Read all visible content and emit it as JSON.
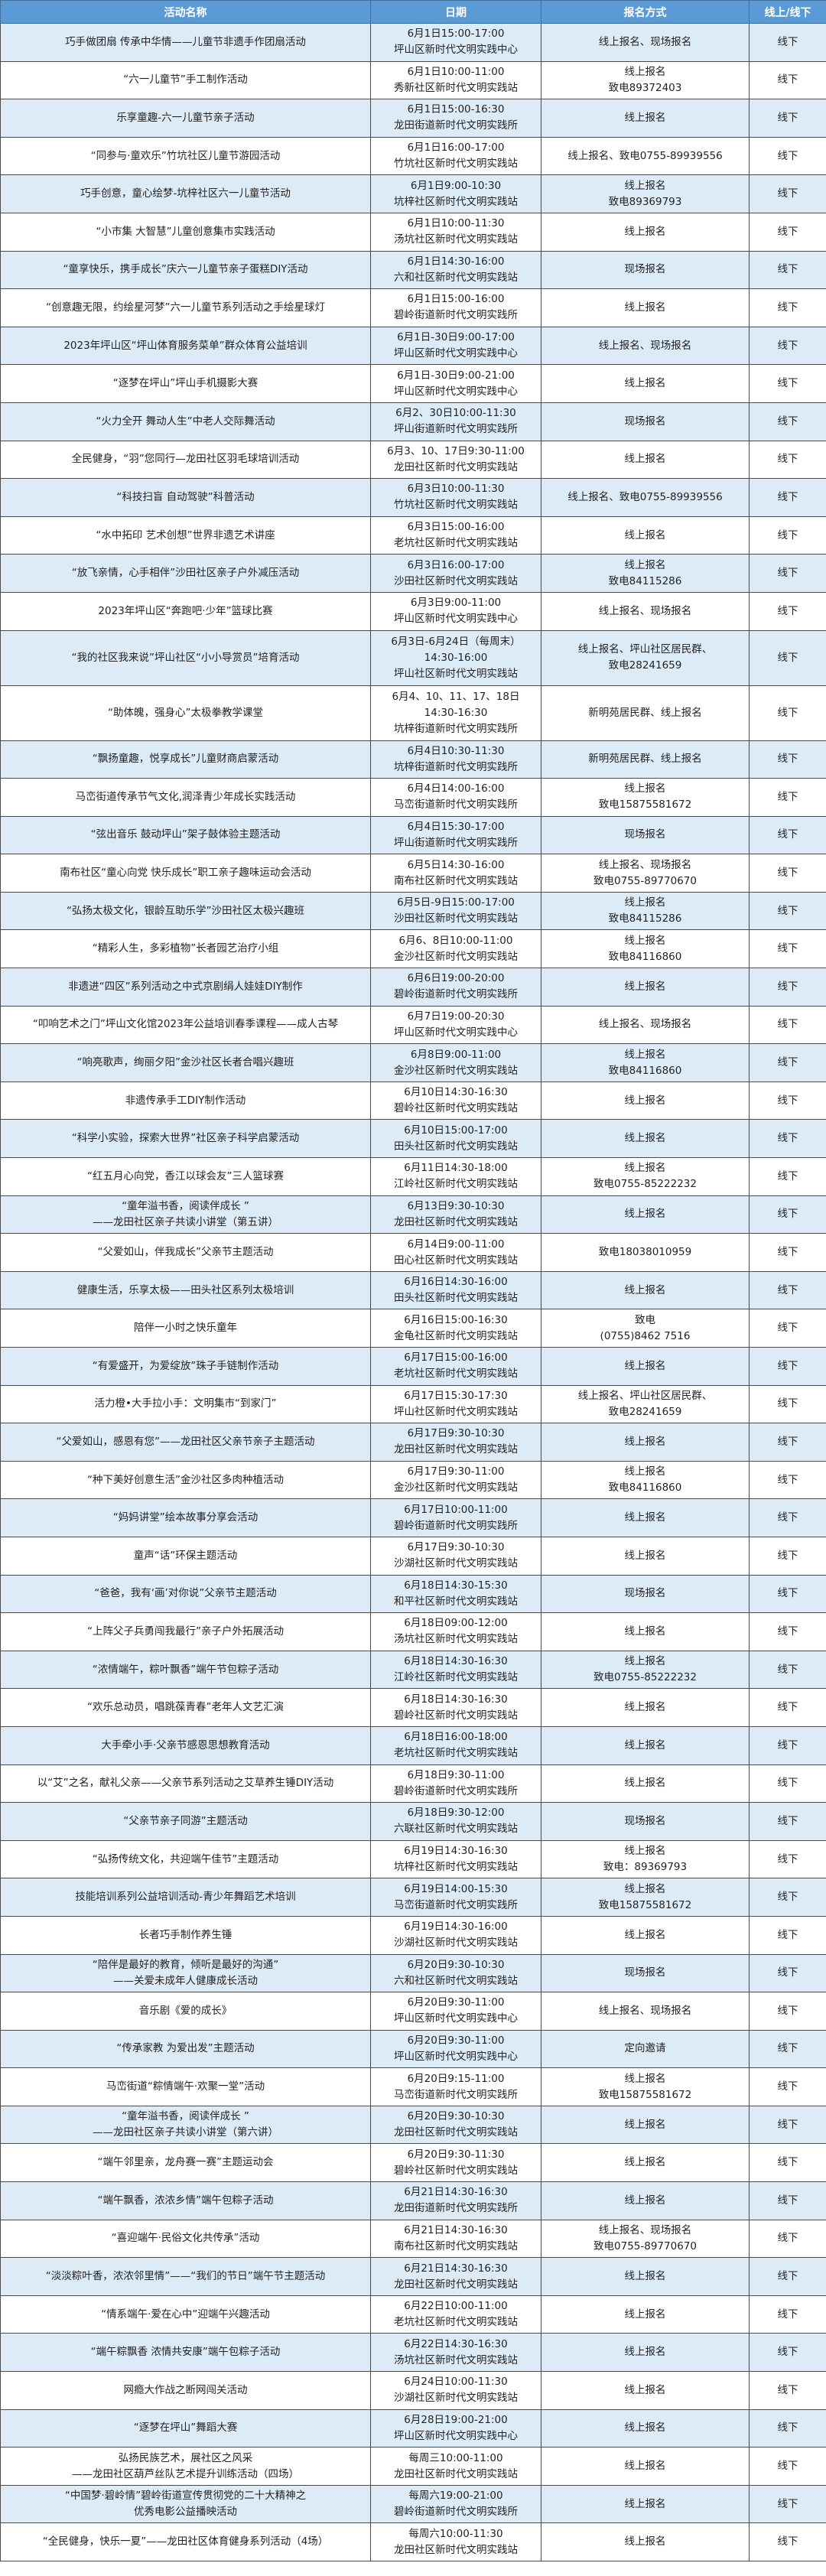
{
  "header": {
    "name": "活动名称",
    "date": "日期",
    "signup": "报名方式",
    "mode": "线上/线下"
  },
  "colors": {
    "header_bg": "#5b9bd5",
    "alt_row_bg": "#ddebf7"
  },
  "rows": [
    {
      "name": [
        "巧手做团扇 传承中华情——儿童节非遗手作团扇活动"
      ],
      "date": [
        "6月1日15:00-17:00",
        "坪山区新时代文明实践中心"
      ],
      "signup": [
        "线上报名、现场报名"
      ],
      "mode": "线下"
    },
    {
      "name": [
        "“六一儿童节”手工制作活动"
      ],
      "date": [
        "6月1日10:00-11:00",
        "秀新社区新时代文明实践站"
      ],
      "signup": [
        "线上报名",
        "致电89372403"
      ],
      "mode": "线下"
    },
    {
      "name": [
        "乐享童趣-六一儿童节亲子活动"
      ],
      "date": [
        "6月1日15:00-16:30",
        "龙田街道新时代文明实践所"
      ],
      "signup": [
        "线上报名"
      ],
      "mode": "线下"
    },
    {
      "name": [
        "“同参与·童欢乐”竹坑社区儿童节游园活动"
      ],
      "date": [
        "6月1日16:00-17:00",
        "竹坑社区新时代文明实践站"
      ],
      "signup": [
        "线上报名、致电0755-89939556"
      ],
      "mode": "线下"
    },
    {
      "name": [
        "巧手创意，童心绘梦-坑梓社区六一儿童节活动"
      ],
      "date": [
        "6月1日9:00-10:30",
        "坑梓社区新时代文明实践站"
      ],
      "signup": [
        "线上报名",
        "致电89369793"
      ],
      "mode": "线下"
    },
    {
      "name": [
        "“小市集 大智慧”儿童创意集市实践活动"
      ],
      "date": [
        "6月1日10:00-11:30",
        "汤坑社区新时代文明实践站"
      ],
      "signup": [
        "线上报名"
      ],
      "mode": "线下"
    },
    {
      "name": [
        "“童享快乐，携手成长”庆六一儿童节亲子蛋糕DIY活动"
      ],
      "date": [
        "6月1日14:30-16:00",
        "六和社区新时代文明实践站"
      ],
      "signup": [
        "现场报名"
      ],
      "mode": "线下"
    },
    {
      "name": [
        "“创意趣无限，约绘星河梦”六一儿童节系列活动之手绘星球灯"
      ],
      "date": [
        "6月1日15:00-16:00",
        "碧岭街道新时代文明实践所"
      ],
      "signup": [
        "线上报名"
      ],
      "mode": "线下"
    },
    {
      "name": [
        "2023年坪山区“坪山体育服务菜单”群众体育公益培训"
      ],
      "date": [
        "6月1日-30日9:00-17:00",
        "坪山区新时代文明实践中心"
      ],
      "signup": [
        "线上报名、现场报名"
      ],
      "mode": "线下"
    },
    {
      "name": [
        "“逐梦在坪山”坪山手机摄影大赛"
      ],
      "date": [
        "6月1日-30日9:00-21:00",
        "坪山区新时代文明实践中心"
      ],
      "signup": [
        "线上报名"
      ],
      "mode": "线下"
    },
    {
      "name": [
        "“火力全开 舞动人生”中老人交际舞活动"
      ],
      "date": [
        "6月2、30日10:00-11:30",
        "坪山街道新时代文明实践所"
      ],
      "signup": [
        "现场报名"
      ],
      "mode": "线下"
    },
    {
      "name": [
        "全民健身，“羽”您同行—龙田社区羽毛球培训活动"
      ],
      "date": [
        "6月3、10、17日9:30-11:00",
        "龙田社区新时代文明实践站"
      ],
      "signup": [
        "线上报名"
      ],
      "mode": "线下"
    },
    {
      "name": [
        "“科技扫盲 自动驾驶”科普活动"
      ],
      "date": [
        "6月3日10:00-11:30",
        "竹坑社区新时代文明实践站"
      ],
      "signup": [
        "线上报名、致电0755-89939556"
      ],
      "mode": "线下"
    },
    {
      "name": [
        "“水中拓印 艺术创想”世界非遗艺术讲座"
      ],
      "date": [
        "6月3日15:00-16:00",
        "老坑社区新时代文明实践站"
      ],
      "signup": [
        "线上报名"
      ],
      "mode": "线下"
    },
    {
      "name": [
        "“放飞亲情，心手相伴”沙田社区亲子户外减压活动"
      ],
      "date": [
        "6月3日16:00-17:00",
        "沙田社区新时代文明实践站"
      ],
      "signup": [
        "线上报名",
        "致电84115286"
      ],
      "mode": "线下"
    },
    {
      "name": [
        "2023年坪山区“奔跑吧·少年”篮球比赛"
      ],
      "date": [
        "6月3日9:00-11:00",
        "坪山区新时代文明实践中心"
      ],
      "signup": [
        "线上报名、现场报名"
      ],
      "mode": "线下"
    },
    {
      "name": [
        "“我的社区我来说”坪山社区“小小导赏员”培育活动"
      ],
      "date": [
        "6月3日-6月24日（每周末）",
        "14:30-16:00",
        "坪山社区新时代文明实践站"
      ],
      "signup": [
        "线上报名、坪山社区居民群、",
        "致电28241659"
      ],
      "mode": "线下"
    },
    {
      "name": [
        "“助体魄，强身心”太极拳教学课堂"
      ],
      "date": [
        "6月4、10、11、17、18日",
        "14:30-16:30",
        "坑梓街道新时代文明实践所"
      ],
      "signup": [
        "新明苑居民群、线上报名"
      ],
      "mode": "线下"
    },
    {
      "name": [
        "“飘扬童趣，悦享成长”儿童财商启蒙活动"
      ],
      "date": [
        "6月4日10:30-11:30",
        "坑梓街道新时代文明实践所"
      ],
      "signup": [
        "新明苑居民群、线上报名"
      ],
      "mode": "线下"
    },
    {
      "name": [
        "马峦街道传承节气文化,润泽青少年成长实践活动"
      ],
      "date": [
        "6月4日14:00-16:00",
        "马峦街道新时代文明实践所"
      ],
      "signup": [
        "线上报名",
        "致电15875581672"
      ],
      "mode": "线下"
    },
    {
      "name": [
        "“弦出音乐 鼓动坪山”架子鼓体验主题活动"
      ],
      "date": [
        "6月4日15:30-17:00",
        "坪山街道新时代文明实践所"
      ],
      "signup": [
        "现场报名"
      ],
      "mode": "线下"
    },
    {
      "name": [
        "南布社区“童心向党 快乐成长”职工亲子趣味运动会活动"
      ],
      "date": [
        "6月5日14:30-16:00",
        "南布社区新时代文明实践站"
      ],
      "signup": [
        "线上报名、现场报名",
        "致电0755-89770670"
      ],
      "mode": "线下"
    },
    {
      "name": [
        "“弘扬太极文化，银龄互助乐学”沙田社区太极兴趣班"
      ],
      "date": [
        "6月5日-9日15:00-17:00",
        "沙田社区新时代文明实践站"
      ],
      "signup": [
        "线上报名",
        "致电84115286"
      ],
      "mode": "线下"
    },
    {
      "name": [
        "“精彩人生，多彩植物”长者园艺治疗小组"
      ],
      "date": [
        "6月6、8日10:00-11:00",
        "金沙社区新时代文明实践站"
      ],
      "signup": [
        "线上报名",
        "致电84116860"
      ],
      "mode": "线下"
    },
    {
      "name": [
        "非遗进“四区”系列活动之中式京剧绢人娃娃DIY制作"
      ],
      "date": [
        "6月6日19:00-20:00",
        "碧岭街道新时代文明实践所"
      ],
      "signup": [
        "线上报名"
      ],
      "mode": "线下"
    },
    {
      "name": [
        "“叩响艺术之门”坪山文化馆2023年公益培训春季课程——成人古琴"
      ],
      "date": [
        "6月7日19:00-20:30",
        "坪山区新时代文明实践中心"
      ],
      "signup": [
        "线上报名、现场报名"
      ],
      "mode": "线下"
    },
    {
      "name": [
        "“响亮歌声，绚丽夕阳”金沙社区长者合唱兴趣班"
      ],
      "date": [
        "6月8日9:00-11:00",
        "金沙社区新时代文明实践站"
      ],
      "signup": [
        "线上报名",
        "致电84116860"
      ],
      "mode": "线下"
    },
    {
      "name": [
        "非遗传承手工DIY制作活动"
      ],
      "date": [
        "6月10日14:30-16:30",
        "碧岭社区新时代文明实践站"
      ],
      "signup": [
        "线上报名"
      ],
      "mode": "线下"
    },
    {
      "name": [
        "“科学小实验，探索大世界”社区亲子科学启蒙活动"
      ],
      "date": [
        "6月10日15:00-17:00",
        "田头社区新时代文明实践站"
      ],
      "signup": [
        "线上报名"
      ],
      "mode": "线下"
    },
    {
      "name": [
        "“红五月心向党，香江以球会友”三人篮球赛"
      ],
      "date": [
        "6月11日14:30-18:00",
        "江岭社区新时代文明实践站"
      ],
      "signup": [
        "线上报名",
        "致电0755-85222232"
      ],
      "mode": "线下"
    },
    {
      "name": [
        "“童年溢书香，阅读伴成长 ”",
        "——龙田社区亲子共读小讲堂（第五讲）"
      ],
      "date": [
        "6月13日9:30-10:30",
        "龙田社区新时代文明实践站"
      ],
      "signup": [
        "线上报名"
      ],
      "mode": "线下"
    },
    {
      "name": [
        "“父爱如山，伴我成长”父亲节主题活动"
      ],
      "date": [
        "6月14日9:00-11:00",
        "田心社区新时代文明实践站"
      ],
      "signup": [
        "致电18038010959"
      ],
      "mode": "线下"
    },
    {
      "name": [
        "健康生活，乐享太极——田头社区系列太极培训"
      ],
      "date": [
        "6月16日14:30-16:00",
        "田头社区新时代文明实践站"
      ],
      "signup": [
        "线上报名"
      ],
      "mode": "线下"
    },
    {
      "name": [
        "陪伴一小时之快乐童年"
      ],
      "date": [
        "6月16日15:00-16:30",
        "金龟社区新时代文明实践站"
      ],
      "signup": [
        "致电",
        "(0755)8462 7516"
      ],
      "mode": "线下"
    },
    {
      "name": [
        "“有爱盛开，为爱绽放”珠子手链制作活动"
      ],
      "date": [
        "6月17日15:00-16:00",
        "老坑社区新时代文明实践站"
      ],
      "signup": [
        "线上报名"
      ],
      "mode": "线下"
    },
    {
      "name": [
        "活力橙•大手拉小手：文明集市“到家门”"
      ],
      "date": [
        "6月17日15:30-17:30",
        "坪山社区新时代文明实践站"
      ],
      "signup": [
        "线上报名、坪山社区居民群、",
        "致电28241659"
      ],
      "mode": "线下"
    },
    {
      "name": [
        "“父爱如山，感恩有您”——龙田社区父亲节亲子主题活动"
      ],
      "date": [
        "6月17日9:30-10:30",
        "龙田社区新时代文明实践站"
      ],
      "signup": [
        "线上报名"
      ],
      "mode": "线下"
    },
    {
      "name": [
        "“种下美好创意生活”金沙社区多肉种植活动"
      ],
      "date": [
        "6月17日9:30-11:00",
        "金沙社区新时代文明实践站"
      ],
      "signup": [
        "线上报名",
        "致电84116860"
      ],
      "mode": "线下"
    },
    {
      "name": [
        "“妈妈讲堂”绘本故事分享会活动"
      ],
      "date": [
        "6月17日10:00-11:00",
        "碧岭街道新时代文明实践所"
      ],
      "signup": [
        "线上报名"
      ],
      "mode": "线下"
    },
    {
      "name": [
        "童声“话”环保主题活动"
      ],
      "date": [
        "6月17日9:30-10:30",
        "沙湖社区新时代文明实践站"
      ],
      "signup": [
        "线上报名"
      ],
      "mode": "线下"
    },
    {
      "name": [
        "“爸爸，我有‘画’对你说”父亲节主题活动"
      ],
      "date": [
        "6月18日14:30-15:30",
        "和平社区新时代文明实践站"
      ],
      "signup": [
        "现场报名"
      ],
      "mode": "线下"
    },
    {
      "name": [
        "“上阵父子兵勇闯我最行”亲子户外拓展活动"
      ],
      "date": [
        "6月18日09:00-12:00",
        "汤坑社区新时代文明实践站"
      ],
      "signup": [
        "线上报名"
      ],
      "mode": "线下"
    },
    {
      "name": [
        "“浓情端午，粽叶飘香”端午节包粽子活动"
      ],
      "date": [
        "6月18日14:30-16:30",
        "江岭社区新时代文明实践站"
      ],
      "signup": [
        "线上报名",
        "致电0755-85222232"
      ],
      "mode": "线下"
    },
    {
      "name": [
        "“欢乐总动员，唱跳葆青春”老年人文艺汇演"
      ],
      "date": [
        "6月18日14:30-16:30",
        "碧岭社区新时代文明实践站"
      ],
      "signup": [
        "线上报名"
      ],
      "mode": "线下"
    },
    {
      "name": [
        "大手牵小手·父亲节感恩思想教育活动"
      ],
      "date": [
        "6月18日16:00-18:00",
        "老坑社区新时代文明实践站"
      ],
      "signup": [
        "线上报名"
      ],
      "mode": "线下"
    },
    {
      "name": [
        "以“艾”之名，献礼父亲——父亲节系列活动之艾草养生锤DIY活动"
      ],
      "date": [
        "6月18日9:30-11:00",
        "碧岭街道新时代文明实践所"
      ],
      "signup": [
        "线上报名"
      ],
      "mode": "线下"
    },
    {
      "name": [
        "“父亲节亲子同游”主题活动"
      ],
      "date": [
        "6月18日9:30-12:00",
        "六联社区新时代文明实践站"
      ],
      "signup": [
        "现场报名"
      ],
      "mode": "线下"
    },
    {
      "name": [
        "“弘扬传统文化，共迎端午佳节”主题活动"
      ],
      "date": [
        "6月19日14:30-16:30",
        "坑梓社区新时代文明实践站"
      ],
      "signup": [
        "线上报名",
        "致电：89369793"
      ],
      "mode": "线下"
    },
    {
      "name": [
        "技能培训系列公益培训活动-青少年舞蹈艺术培训"
      ],
      "date": [
        "6月19日14:00-15:30",
        "马峦街道新时代文明实践所"
      ],
      "signup": [
        "线上报名",
        "致电15875581672"
      ],
      "mode": "线下"
    },
    {
      "name": [
        "长者巧手制作养生锤"
      ],
      "date": [
        "6月19日14:30-16:00",
        "沙湖社区新时代文明实践站"
      ],
      "signup": [
        "线上报名"
      ],
      "mode": "线下"
    },
    {
      "name": [
        "“陪伴是最好的教育，倾听是最好的沟通”",
        "——关爱未成年人健康成长活动"
      ],
      "date": [
        "6月20日9:30-10:30",
        "六和社区新时代文明实践站"
      ],
      "signup": [
        "现场报名"
      ],
      "mode": "线下"
    },
    {
      "name": [
        "音乐剧《爱的成长》"
      ],
      "date": [
        "6月20日9:30-11:00",
        "坪山区新时代文明实践中心"
      ],
      "signup": [
        "线上报名、现场报名"
      ],
      "mode": "线下"
    },
    {
      "name": [
        "“传承家教 为爱出发”主题活动"
      ],
      "date": [
        "6月20日9:30-11:00",
        "坪山区新时代文明实践中心"
      ],
      "signup": [
        "定向邀请"
      ],
      "mode": "线下"
    },
    {
      "name": [
        "马峦街道“粽情端午·欢聚一堂”活动"
      ],
      "date": [
        "6月20日9:15-11:00",
        "马峦街道新时代文明实践所"
      ],
      "signup": [
        "线上报名",
        "致电15875581672"
      ],
      "mode": "线下"
    },
    {
      "name": [
        "“童年溢书香，阅读伴成长 ”",
        "——龙田社区亲子共读小讲堂（第六讲）"
      ],
      "date": [
        "6月20日9:30-10:30",
        "龙田社区新时代文明实践站"
      ],
      "signup": [
        "线上报名"
      ],
      "mode": "线下"
    },
    {
      "name": [
        "“端午邻里亲，龙舟赛一赛”主题运动会"
      ],
      "date": [
        "6月20日9:30-11:30",
        "碧岭社区新时代文明实践站"
      ],
      "signup": [
        "线上报名"
      ],
      "mode": "线下"
    },
    {
      "name": [
        "“端午飘香，浓浓乡情”端午包粽子活动"
      ],
      "date": [
        "6月21日14:30-16:30",
        "龙田街道新时代文明实践所"
      ],
      "signup": [
        "线上报名"
      ],
      "mode": "线下"
    },
    {
      "name": [
        "“喜迎端午·民俗文化共传承”活动"
      ],
      "date": [
        "6月21日14:30-16:30",
        "南布社区新时代文明实践站"
      ],
      "signup": [
        "线上报名、现场报名",
        "致电0755-89770670"
      ],
      "mode": "线下"
    },
    {
      "name": [
        "“淡淡粽叶香，浓浓邻里情”——“我们的节日”端午节主题活动"
      ],
      "date": [
        "6月21日14:30-16:30",
        "龙田社区新时代文明实践站"
      ],
      "signup": [
        "线上报名"
      ],
      "mode": "线下"
    },
    {
      "name": [
        "“情系端午·爱在心中”迎端午兴趣活动"
      ],
      "date": [
        "6月22日10:00-11:00",
        "老坑社区新时代文明实践站"
      ],
      "signup": [
        "线上报名"
      ],
      "mode": "线下"
    },
    {
      "name": [
        "“端午粽飘香 浓情共安康”端午包粽子活动"
      ],
      "date": [
        "6月22日14:30-16:30",
        "汤坑社区新时代文明实践站"
      ],
      "signup": [
        "线上报名"
      ],
      "mode": "线下"
    },
    {
      "name": [
        "网瘾大作战之断网闯关活动"
      ],
      "date": [
        "6月24日10:00-11:30",
        "沙湖社区新时代文明实践站"
      ],
      "signup": [
        "线上报名"
      ],
      "mode": "线下"
    },
    {
      "name": [
        "“逐梦在坪山”舞蹈大赛"
      ],
      "date": [
        "6月28日19:00-21:00",
        "坪山区新时代文明实践中心"
      ],
      "signup": [
        "线上报名"
      ],
      "mode": "线下"
    },
    {
      "name": [
        "弘扬民族艺术，展社区之风采",
        "——龙田社区葫芦丝队艺术提升训练活动（四场）"
      ],
      "date": [
        "每周三10:00-11:00",
        "龙田社区新时代文明实践站"
      ],
      "signup": [
        "线上报名"
      ],
      "mode": "线下"
    },
    {
      "name": [
        "“中国梦·碧岭情”碧岭街道宣传贯彻党的二十大精神之",
        "优秀电影公益播映活动"
      ],
      "date": [
        "每周六19:00-21:00",
        "碧岭街道新时代文明实践所"
      ],
      "signup": [
        "线上报名"
      ],
      "mode": "线下"
    },
    {
      "name": [
        "“全民健身，快乐一夏”——龙田社区体育健身系列活动（4场）"
      ],
      "date": [
        "每周六10:00-11:30",
        "龙田社区新时代文明实践站"
      ],
      "signup": [
        "线上报名"
      ],
      "mode": "线下"
    }
  ]
}
